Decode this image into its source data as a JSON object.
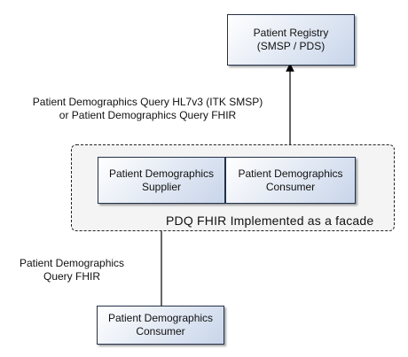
{
  "diagram": {
    "registry": {
      "label": "Patient Registry\n(SMSP / PDS)"
    },
    "supplier": {
      "label": "Patient Demographics\nSupplier"
    },
    "inner_consumer": {
      "label": "Patient Demographics\nConsumer"
    },
    "bottom_consumer": {
      "label": "Patient Demographics\nConsumer"
    },
    "facade_label": "PDQ FHIR Implemented as a facade",
    "upper_edge_label": "Patient Demographics Query HL7v3 (ITK SMSP)\nor Patient Demographics Query FHIR",
    "lower_edge_label": "Patient Demographics\nQuery FHIR"
  }
}
